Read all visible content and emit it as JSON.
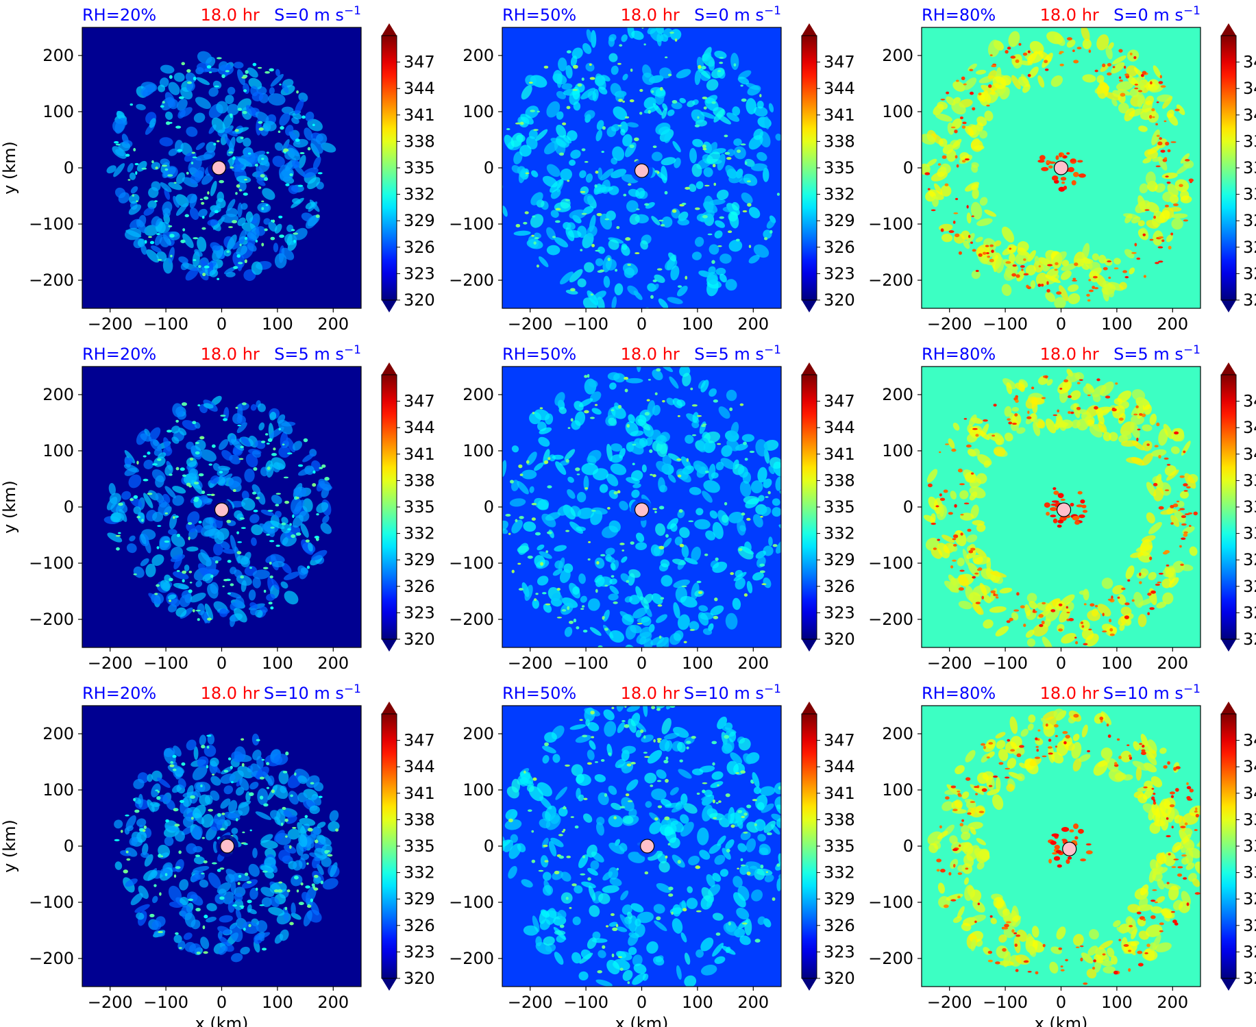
{
  "figure": {
    "colorbar_ticks": [
      "347",
      "344",
      "341",
      "338",
      "335",
      "332",
      "329",
      "326",
      "323",
      "320"
    ],
    "colorbar_range": [
      320,
      350
    ],
    "axis_ticks": [
      "−200",
      "−100",
      "0",
      "100",
      "200"
    ],
    "xlabel": "x (km)",
    "ylabel": "y (km)",
    "title_color_blue": "#0000ff",
    "title_color_red": "#ff0000"
  },
  "chart_data": [
    {
      "type": "heatmap",
      "rh": "RH=20%",
      "time": "18.0 hr",
      "shear": "S=0 m s",
      "shear_exp": "−1",
      "xlim": [
        -250,
        250
      ],
      "ylim": [
        -250,
        250
      ],
      "center": [
        -5,
        0
      ],
      "background_value": 320.5,
      "ring_inner": 0,
      "ring_outer": 200,
      "ring_peak_value": 331
    },
    {
      "type": "heatmap",
      "rh": "RH=50%",
      "time": "18.0 hr",
      "shear": "S=0 m s",
      "shear_exp": "−1",
      "xlim": [
        -250,
        250
      ],
      "ylim": [
        -250,
        250
      ],
      "center": [
        0,
        -5
      ],
      "background_value": 325.5,
      "ring_inner": 0,
      "ring_outer": 260,
      "ring_peak_value": 332.5
    },
    {
      "type": "heatmap",
      "rh": "RH=80%",
      "time": "18.0 hr",
      "shear": "S=0 m s",
      "shear_exp": "−1",
      "xlim": [
        -250,
        250
      ],
      "ylim": [
        -250,
        250
      ],
      "center": [
        0,
        0
      ],
      "background_value": 333,
      "ring_inner": 150,
      "ring_outer": 245,
      "ring_peak_value": 340
    },
    {
      "type": "heatmap",
      "rh": "RH=20%",
      "time": "18.0 hr",
      "shear": "S=5 m s",
      "shear_exp": "−1",
      "xlim": [
        -250,
        250
      ],
      "ylim": [
        -250,
        250
      ],
      "center": [
        0,
        -5
      ],
      "background_value": 320.5,
      "ring_inner": 0,
      "ring_outer": 200,
      "ring_peak_value": 331
    },
    {
      "type": "heatmap",
      "rh": "RH=50%",
      "time": "18.0 hr",
      "shear": "S=5 m s",
      "shear_exp": "−1",
      "xlim": [
        -250,
        250
      ],
      "ylim": [
        -250,
        250
      ],
      "center": [
        0,
        -5
      ],
      "background_value": 325.5,
      "ring_inner": 0,
      "ring_outer": 260,
      "ring_peak_value": 332.5
    },
    {
      "type": "heatmap",
      "rh": "RH=80%",
      "time": "18.0 hr",
      "shear": "S=5 m s",
      "shear_exp": "−1",
      "xlim": [
        -250,
        250
      ],
      "ylim": [
        -250,
        250
      ],
      "center": [
        5,
        -5
      ],
      "background_value": 333,
      "ring_inner": 150,
      "ring_outer": 245,
      "ring_peak_value": 340
    },
    {
      "type": "heatmap",
      "rh": "RH=20%",
      "time": "18.0 hr",
      "shear": "S=10 m s",
      "shear_exp": "−1",
      "xlim": [
        -250,
        250
      ],
      "ylim": [
        -250,
        250
      ],
      "center": [
        10,
        0
      ],
      "background_value": 320.5,
      "ring_inner": 0,
      "ring_outer": 200,
      "ring_peak_value": 331
    },
    {
      "type": "heatmap",
      "rh": "RH=50%",
      "time": "18.0 hr",
      "shear": "S=10 m s",
      "shear_exp": "−1",
      "xlim": [
        -250,
        250
      ],
      "ylim": [
        -250,
        250
      ],
      "center": [
        10,
        0
      ],
      "background_value": 325.5,
      "ring_inner": 0,
      "ring_outer": 260,
      "ring_peak_value": 332.5
    },
    {
      "type": "heatmap",
      "rh": "RH=80%",
      "time": "18.0 hr",
      "shear": "S=10 m s",
      "shear_exp": "−1",
      "xlim": [
        -250,
        250
      ],
      "ylim": [
        -250,
        250
      ],
      "center": [
        15,
        -5
      ],
      "background_value": 333,
      "ring_inner": 150,
      "ring_outer": 245,
      "ring_peak_value": 340
    }
  ]
}
